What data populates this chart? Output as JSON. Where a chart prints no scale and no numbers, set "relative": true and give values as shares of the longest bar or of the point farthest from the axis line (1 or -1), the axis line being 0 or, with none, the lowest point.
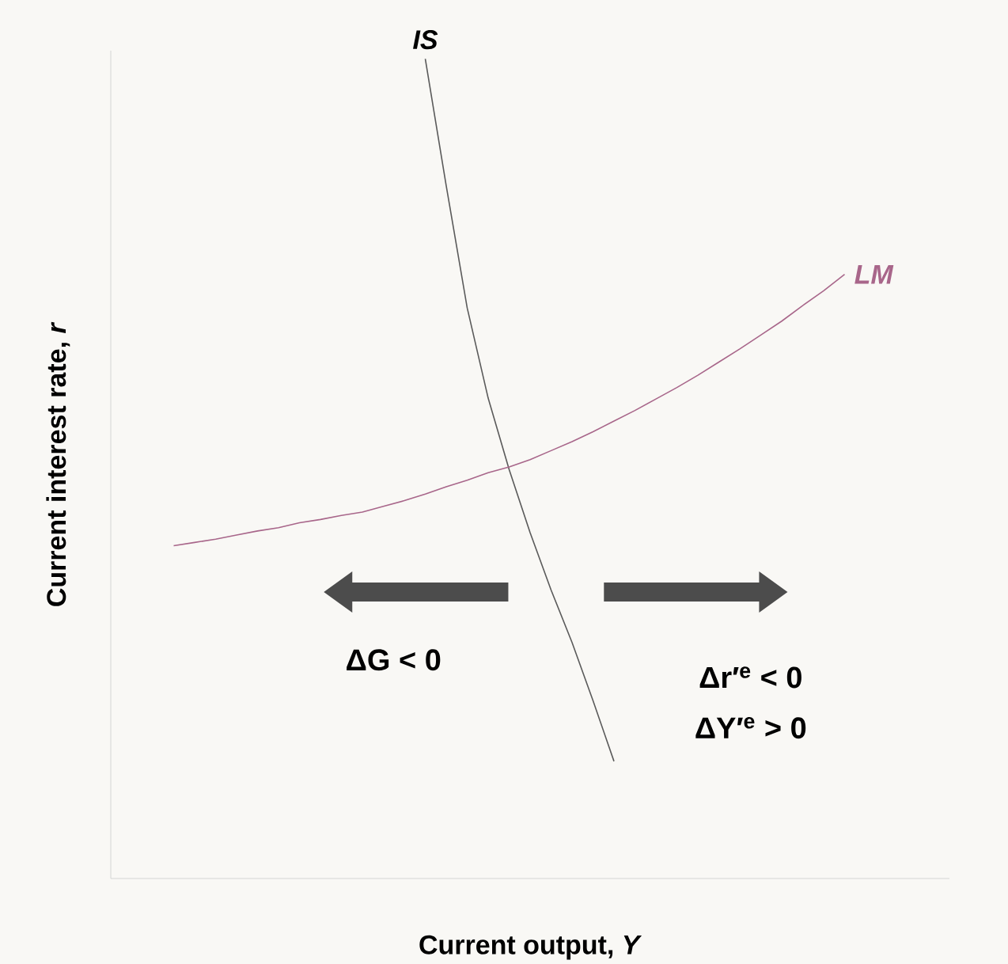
{
  "chart_data": {
    "type": "line",
    "relative": true,
    "xlabel": "Current output, *Y*",
    "ylabel": "Current interest rate, *r*",
    "categories": [
      null,
      null,
      null,
      null,
      null,
      null,
      null,
      null,
      null,
      null,
      null,
      null,
      null,
      null,
      null,
      null,
      null,
      null,
      null,
      null,
      null,
      null,
      null,
      null,
      null,
      null,
      null,
      null,
      null,
      null,
      null,
      null,
      null,
      null,
      null,
      null,
      null,
      null,
      null,
      null,
      null
    ],
    "series": [
      {
        "name": "IS",
        "color": "#5a5a5a",
        "values": [
          null,
          null,
          null,
          null,
          null,
          null,
          null,
          null,
          null,
          null,
          null,
          null,
          null,
          null,
          null,
          1.0,
          0.845,
          0.696,
          0.586,
          0.499,
          0.422,
          0.352,
          0.288,
          0.217,
          0.143,
          null,
          null,
          null,
          null,
          null,
          null,
          null,
          null,
          null,
          null,
          null,
          null,
          null,
          null,
          null,
          null
        ]
      },
      {
        "name": "LM",
        "color": "#a8668a",
        "values": [
          null,
          null,
          null,
          0.406,
          0.41,
          0.414,
          0.419,
          0.424,
          0.428,
          0.434,
          0.438,
          0.443,
          0.447,
          0.454,
          0.461,
          0.469,
          0.478,
          0.486,
          0.495,
          0.502,
          0.511,
          0.522,
          0.533,
          0.545,
          0.558,
          0.571,
          0.585,
          0.599,
          0.614,
          0.63,
          0.646,
          0.663,
          0.68,
          0.699,
          0.717,
          0.737,
          null,
          null,
          null,
          null,
          null
        ]
      }
    ],
    "annotations": [
      "ΔG < 0",
      "Δr′$^{e}$ < 0",
      "ΔY′$^{e}$ > 0"
    ],
    "marker": "none"
  }
}
